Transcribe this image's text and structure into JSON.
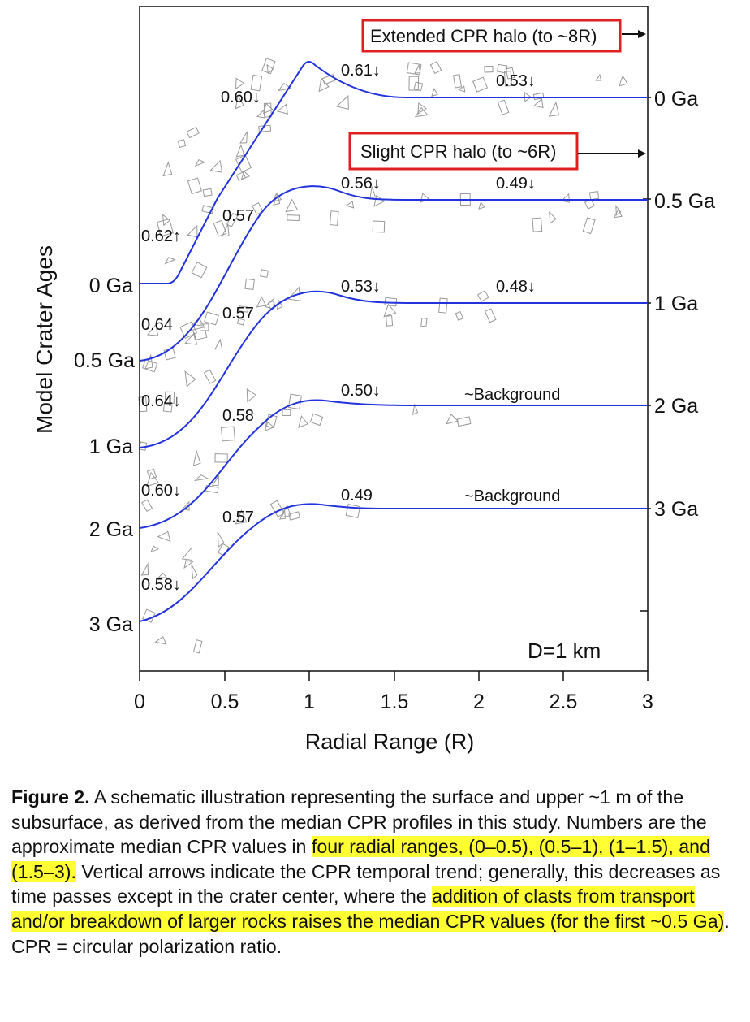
{
  "figure": {
    "ylabel": "Model Crater Ages",
    "xlabel": "Radial Range (R)",
    "diameter_label": "D=1 km",
    "x_ticks": [
      "0",
      "0.5",
      "1",
      "1.5",
      "2",
      "2.5",
      "3"
    ],
    "left_age_labels": [
      "0 Ga",
      "0.5 Ga",
      "1 Ga",
      "2 Ga",
      "3 Ga"
    ],
    "right_age_labels": [
      "0 Ga",
      "0.5 Ga",
      "1 Ga",
      "2 Ga",
      "3 Ga"
    ],
    "halo_boxes": [
      {
        "text": "Extended CPR halo (to ~8R)"
      },
      {
        "text": "Slight CPR halo (to ~6R)"
      }
    ],
    "colors": {
      "profile": "#2233dd",
      "halo_box": "#e02020",
      "clast": "#999999"
    }
  },
  "chart_data": {
    "type": "line",
    "xlabel": "Radial Range (R)",
    "ylabel": "Model Crater Ages",
    "xlim": [
      0,
      3
    ],
    "x_ticks": [
      0,
      0.5,
      1,
      1.5,
      2,
      2.5,
      3
    ],
    "series": [
      {
        "name": "0 Ga",
        "cpr_labels": [
          {
            "text": "0.62",
            "arrow": "up"
          },
          {
            "text": "0.60",
            "arrow": "down"
          },
          {
            "text": "0.61",
            "arrow": "down"
          },
          {
            "text": "0.53",
            "arrow": "down"
          }
        ]
      },
      {
        "name": "0.5 Ga",
        "cpr_labels": [
          {
            "text": "0.64",
            "arrow": ""
          },
          {
            "text": "0.57",
            "arrow": ""
          },
          {
            "text": "0.56",
            "arrow": "down"
          },
          {
            "text": "0.49",
            "arrow": "down"
          }
        ]
      },
      {
        "name": "1 Ga",
        "cpr_labels": [
          {
            "text": "0.64",
            "arrow": "down"
          },
          {
            "text": "0.57",
            "arrow": ""
          },
          {
            "text": "0.53",
            "arrow": "down"
          },
          {
            "text": "0.48",
            "arrow": "down"
          }
        ]
      },
      {
        "name": "2 Ga",
        "cpr_labels": [
          {
            "text": "0.60",
            "arrow": "down"
          },
          {
            "text": "0.58",
            "arrow": ""
          },
          {
            "text": "0.50",
            "arrow": "down"
          },
          {
            "text": "~Background",
            "arrow": ""
          }
        ]
      },
      {
        "name": "3 Ga",
        "cpr_labels": [
          {
            "text": "0.58",
            "arrow": "down"
          },
          {
            "text": "0.57",
            "arrow": ""
          },
          {
            "text": "0.49",
            "arrow": ""
          },
          {
            "text": "~Background",
            "arrow": ""
          }
        ]
      }
    ]
  },
  "caption": {
    "label": "Figure 2.",
    "text1": " A schematic illustration representing the surface and upper ~1 m of the subsurface, as derived from the median CPR profiles in this study. Numbers are the approximate median CPR values in ",
    "hl1": "four radial ranges, (0–0.5), (0.5–1), (1–1.5), and (1.5–3).",
    "text2": " Vertical arrows indicate the CPR temporal trend; generally, this decreases as time passes except in the crater center, where the ",
    "hl2": "addition of clasts from transport and/or breakdown of larger rocks raises the median CPR values (for the first ~0.5 Ga)",
    "text3": ". CPR = circular polarization ratio."
  }
}
